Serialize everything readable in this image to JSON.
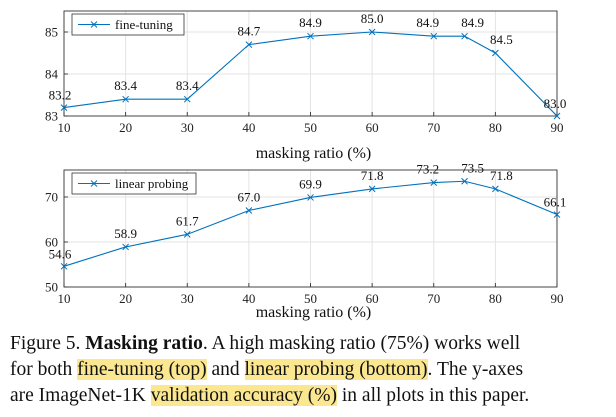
{
  "chart_data": [
    {
      "type": "line",
      "xlabel": "masking ratio (%)",
      "ylabel": "",
      "xlim": [
        10,
        90
      ],
      "ylim": [
        83,
        85.5
      ],
      "xticks": [
        10,
        20,
        30,
        40,
        50,
        60,
        70,
        80,
        90
      ],
      "yticks": [
        83,
        84,
        85
      ],
      "grid": true,
      "legend_position": "top-left",
      "color": "#0072BD",
      "series": [
        {
          "name": "fine-tuning",
          "x": [
            10,
            20,
            30,
            40,
            50,
            60,
            70,
            75,
            80,
            90
          ],
          "values": [
            83.2,
            83.4,
            83.4,
            84.7,
            84.9,
            85.0,
            84.9,
            84.9,
            84.5,
            83.0
          ],
          "labels": [
            "83.2",
            "83.4",
            "83.4",
            "84.7",
            "84.9",
            "85.0",
            "84.9",
            "84.9",
            "84.5",
            "83.0"
          ]
        }
      ]
    },
    {
      "type": "line",
      "xlabel": "masking ratio (%)",
      "ylabel": "",
      "xlim": [
        10,
        90
      ],
      "ylim": [
        50,
        76
      ],
      "xticks": [
        10,
        20,
        30,
        40,
        50,
        60,
        70,
        80,
        90
      ],
      "yticks": [
        50,
        60,
        70
      ],
      "grid": true,
      "legend_position": "top-left",
      "color": "#0072BD",
      "series": [
        {
          "name": "linear probing",
          "x": [
            10,
            20,
            30,
            40,
            50,
            60,
            70,
            75,
            80,
            90
          ],
          "values": [
            54.6,
            58.9,
            61.7,
            67.0,
            69.9,
            71.8,
            73.2,
            73.5,
            71.8,
            66.1
          ],
          "labels": [
            "54.6",
            "58.9",
            "61.7",
            "67.0",
            "69.9",
            "71.8",
            "73.2",
            "73.5",
            "71.8",
            "66.1"
          ]
        }
      ]
    }
  ],
  "caption": {
    "prefix": "Figure 5. ",
    "bold": "Masking ratio",
    "line1_rest": ". A high masking ratio (75%) works well",
    "line2_a": "for both ",
    "line2_hl1": "fine-tuning (top)",
    "line2_b": " and ",
    "line2_hl2": "linear probing (bottom)",
    "line2_c": ". The y-axes",
    "line3_a": "are ImageNet-1K ",
    "line3_hl": "validation accuracy (%)",
    "line3_b": " in all plots in this paper."
  }
}
